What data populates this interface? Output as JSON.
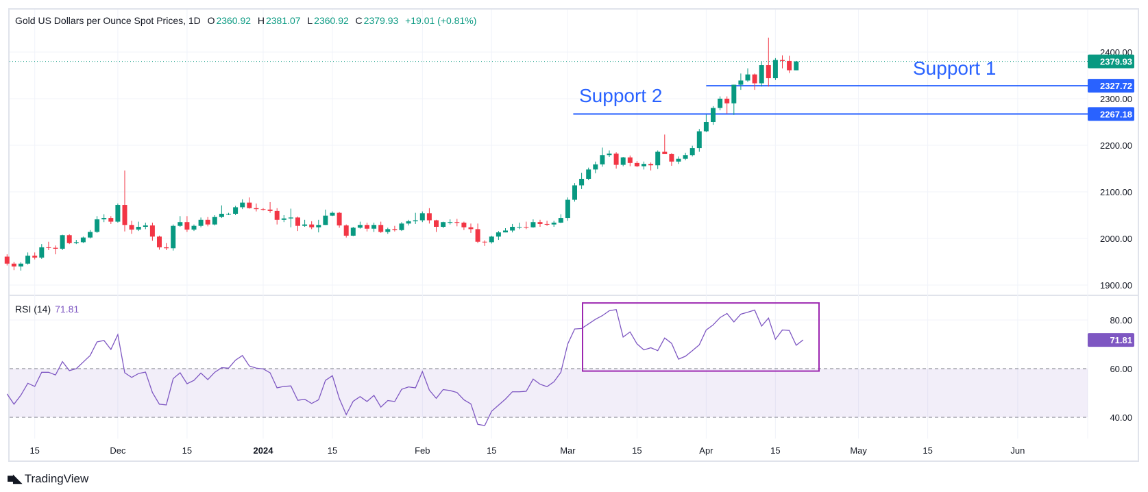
{
  "header": {
    "title": "Gold US Dollars per Ounce Spot Prices, 1D",
    "open_label": "O",
    "open": "2360.92",
    "high_label": "H",
    "high": "2381.07",
    "low_label": "L",
    "low": "2360.92",
    "close_label": "C",
    "close": "2379.93",
    "change": "+19.01 (+0.81%)"
  },
  "annotations": {
    "support1": "Support 1",
    "support2": "Support 2"
  },
  "rsi_legend": {
    "label": "RSI (14)",
    "value": "71.81"
  },
  "footer": {
    "brand": "TradingView",
    "logo_mark": "TV"
  },
  "colors": {
    "up": "#089981",
    "down": "#f23645",
    "rsi": "#7e57c2",
    "support": "#2962ff",
    "box": "#9c27b0"
  },
  "chart_data": [
    {
      "type": "candlestick",
      "title": "Gold US Dollars per Ounce Spot Prices, 1D",
      "ylim": [
        1870,
        2440
      ],
      "yticks": [
        "2400.00",
        "2300.00",
        "2200.00",
        "2100.00",
        "2000.00",
        "1900.00"
      ],
      "ytick_values": [
        2400,
        2300,
        2200,
        2100,
        2000,
        1900
      ],
      "last_price": {
        "value": 2379.93,
        "label": "2379.93"
      },
      "support_lines": [
        {
          "name": "Support 1",
          "value": 2327.72,
          "label": "2327.72",
          "from_date": "2024-04-01"
        },
        {
          "name": "Support 2",
          "value": 2267.18,
          "label": "2267.18",
          "from_date": "2024-03-01"
        }
      ],
      "xticks": [
        {
          "label": "15",
          "date": "2023-11-15"
        },
        {
          "label": "Dec",
          "date": "2023-12-01"
        },
        {
          "label": "15",
          "date": "2023-12-15"
        },
        {
          "label": "2024",
          "date": "2024-01-01",
          "bold": true
        },
        {
          "label": "15",
          "date": "2024-01-15"
        },
        {
          "label": "Feb",
          "date": "2024-02-01"
        },
        {
          "label": "15",
          "date": "2024-02-15"
        },
        {
          "label": "Mar",
          "date": "2024-03-01"
        },
        {
          "label": "15",
          "date": "2024-03-15"
        },
        {
          "label": "Apr",
          "date": "2024-04-01"
        },
        {
          "label": "15",
          "date": "2024-04-15"
        },
        {
          "label": "May",
          "date": "2024-05-01"
        },
        {
          "label": "15",
          "date": "2024-05-15"
        },
        {
          "label": "Jun",
          "date": "2024-06-03"
        }
      ],
      "xtick_bar_index": [
        4,
        16,
        26,
        37,
        47,
        60,
        70,
        81,
        91,
        101,
        111,
        123,
        133,
        146
      ],
      "ohlc": [
        [
          1961,
          1966,
          1942,
          1946
        ],
        [
          1946,
          1950,
          1932,
          1940
        ],
        [
          1940,
          1949,
          1931,
          1946
        ],
        [
          1946,
          1970,
          1944,
          1963
        ],
        [
          1963,
          1970,
          1955,
          1959
        ],
        [
          1959,
          1988,
          1956,
          1981
        ],
        [
          1981,
          1993,
          1975,
          1980
        ],
        [
          1980,
          1985,
          1966,
          1978
        ],
        [
          1978,
          2008,
          1975,
          2007
        ],
        [
          2007,
          2009,
          1988,
          1990
        ],
        [
          1990,
          1997,
          1988,
          1992
        ],
        [
          1992,
          2004,
          1990,
          2002
        ],
        [
          2002,
          2018,
          2000,
          2014
        ],
        [
          2014,
          2048,
          2012,
          2041
        ],
        [
          2041,
          2052,
          2035,
          2044
        ],
        [
          2044,
          2048,
          2031,
          2036
        ],
        [
          2036,
          2075,
          2034,
          2072
        ],
        [
          2072,
          2146,
          2015,
          2029
        ],
        [
          2029,
          2038,
          2010,
          2019
        ],
        [
          2019,
          2036,
          2016,
          2025
        ],
        [
          2025,
          2034,
          2020,
          2028
        ],
        [
          2028,
          2034,
          1995,
          2004
        ],
        [
          2004,
          2006,
          1976,
          1981
        ],
        [
          1981,
          1990,
          1975,
          1979
        ],
        [
          1979,
          2030,
          1974,
          2027
        ],
        [
          2027,
          2048,
          2025,
          2035
        ],
        [
          2035,
          2048,
          2014,
          2019
        ],
        [
          2019,
          2030,
          2016,
          2027
        ],
        [
          2027,
          2045,
          2024,
          2040
        ],
        [
          2040,
          2046,
          2026,
          2030
        ],
        [
          2030,
          2050,
          2028,
          2046
        ],
        [
          2046,
          2071,
          2044,
          2053
        ],
        [
          2053,
          2055,
          2050,
          2053
        ],
        [
          2053,
          2070,
          2050,
          2067
        ],
        [
          2067,
          2084,
          2063,
          2077
        ],
        [
          2077,
          2088,
          2064,
          2065
        ],
        [
          2065,
          2075,
          2058,
          2063
        ],
        [
          2063,
          2065,
          2060,
          2062
        ],
        [
          2062,
          2078,
          2055,
          2059
        ],
        [
          2059,
          2065,
          2030,
          2040
        ],
        [
          2040,
          2050,
          2035,
          2043
        ],
        [
          2043,
          2064,
          2024,
          2045
        ],
        [
          2045,
          2047,
          2016,
          2027
        ],
        [
          2027,
          2040,
          2025,
          2030
        ],
        [
          2030,
          2037,
          2020,
          2024
        ],
        [
          2024,
          2040,
          2013,
          2029
        ],
        [
          2029,
          2062,
          2029,
          2049
        ],
        [
          2049,
          2058,
          2048,
          2055
        ],
        [
          2055,
          2057,
          2023,
          2028
        ],
        [
          2028,
          2030,
          2002,
          2006
        ],
        [
          2006,
          2025,
          2005,
          2023
        ],
        [
          2023,
          2036,
          2021,
          2029
        ],
        [
          2029,
          2034,
          2015,
          2021
        ],
        [
          2021,
          2034,
          2014,
          2029
        ],
        [
          2029,
          2036,
          2012,
          2014
        ],
        [
          2014,
          2023,
          2010,
          2020
        ],
        [
          2020,
          2027,
          2015,
          2018
        ],
        [
          2018,
          2035,
          2016,
          2032
        ],
        [
          2032,
          2040,
          2028,
          2037
        ],
        [
          2037,
          2055,
          2031,
          2039
        ],
        [
          2039,
          2058,
          2035,
          2054
        ],
        [
          2054,
          2065,
          2032,
          2039
        ],
        [
          2039,
          2040,
          2014,
          2025
        ],
        [
          2025,
          2036,
          2022,
          2035
        ],
        [
          2035,
          2041,
          2030,
          2035
        ],
        [
          2035,
          2042,
          2026,
          2034
        ],
        [
          2034,
          2036,
          2018,
          2024
        ],
        [
          2024,
          2032,
          2012,
          2020
        ],
        [
          2020,
          2032,
          1990,
          1993
        ],
        [
          1993,
          1996,
          1984,
          1992
        ],
        [
          1992,
          2006,
          1989,
          2004
        ],
        [
          2004,
          2016,
          1997,
          2013
        ],
        [
          2013,
          2022,
          2013,
          2017
        ],
        [
          2017,
          2031,
          2013,
          2025
        ],
        [
          2025,
          2034,
          2020,
          2025
        ],
        [
          2025,
          2036,
          2020,
          2024
        ],
        [
          2024,
          2041,
          2023,
          2035
        ],
        [
          2035,
          2040,
          2025,
          2031
        ],
        [
          2031,
          2038,
          2027,
          2030
        ],
        [
          2030,
          2038,
          2025,
          2034
        ],
        [
          2034,
          2052,
          2033,
          2044
        ],
        [
          2044,
          2088,
          2038,
          2083
        ],
        [
          2083,
          2119,
          2079,
          2114
        ],
        [
          2114,
          2141,
          2106,
          2128
        ],
        [
          2128,
          2152,
          2125,
          2148
        ],
        [
          2148,
          2165,
          2140,
          2159
        ],
        [
          2159,
          2195,
          2154,
          2179
        ],
        [
          2179,
          2189,
          2175,
          2182
        ],
        [
          2182,
          2185,
          2150,
          2158
        ],
        [
          2158,
          2175,
          2155,
          2174
        ],
        [
          2174,
          2178,
          2155,
          2162
        ],
        [
          2162,
          2166,
          2153,
          2155
        ],
        [
          2155,
          2165,
          2148,
          2160
        ],
        [
          2160,
          2163,
          2146,
          2157
        ],
        [
          2157,
          2189,
          2149,
          2186
        ],
        [
          2186,
          2223,
          2183,
          2181
        ],
        [
          2181,
          2183,
          2156,
          2165
        ],
        [
          2165,
          2176,
          2160,
          2171
        ],
        [
          2171,
          2184,
          2168,
          2179
        ],
        [
          2179,
          2199,
          2176,
          2194
        ],
        [
          2194,
          2235,
          2186,
          2230
        ],
        [
          2230,
          2266,
          2228,
          2250
        ],
        [
          2250,
          2284,
          2244,
          2280
        ],
        [
          2280,
          2305,
          2275,
          2300
        ],
        [
          2300,
          2305,
          2268,
          2290
        ],
        [
          2290,
          2330,
          2265,
          2330
        ],
        [
          2330,
          2354,
          2319,
          2339
        ],
        [
          2339,
          2365,
          2336,
          2352
        ],
        [
          2352,
          2354,
          2319,
          2333
        ],
        [
          2333,
          2380,
          2326,
          2372
        ],
        [
          2372,
          2431,
          2326,
          2344
        ],
        [
          2344,
          2387,
          2340,
          2383
        ],
        [
          2383,
          2393,
          2365,
          2381
        ],
        [
          2381,
          2392,
          2355,
          2361
        ],
        [
          2360.92,
          2381.07,
          2360.92,
          2379.93
        ]
      ],
      "first_date": "2023-11-09",
      "last_date": "2024-04-18"
    },
    {
      "type": "line",
      "title": "RSI (14)",
      "ylim": [
        33,
        90
      ],
      "yticks": [
        "80.00",
        "60.00",
        "40.00"
      ],
      "ytick_values": [
        80,
        60,
        40
      ],
      "bands": {
        "upper": 60,
        "lower": 40
      },
      "last_value": {
        "value": 71.81,
        "label": "71.81"
      },
      "highlight_box": {
        "from_date": "2024-03-05",
        "to_date": "2024-04-23",
        "rsi_range": [
          59,
          87
        ]
      },
      "values": [
        49.6,
        45.4,
        49.1,
        54,
        52.7,
        58.5,
        58.5,
        57.4,
        62.9,
        59.2,
        60,
        62.7,
        65.4,
        71,
        71.6,
        67.9,
        74,
        58.3,
        56.4,
        58,
        58.6,
        50.2,
        45.4,
        45.1,
        55.9,
        58.3,
        53.8,
        55.2,
        58.2,
        55.5,
        58.5,
        60.4,
        60.2,
        63.5,
        65.4,
        61.1,
        60.2,
        59.9,
        58.3,
        52.1,
        52.7,
        52.9,
        47,
        47.4,
        45.7,
        47.2,
        55.2,
        57.1,
        47.7,
        41.1,
        46.6,
        48.5,
        46.5,
        49,
        44.2,
        46.9,
        46.5,
        51.5,
        52.5,
        52.1,
        58.8,
        51.2,
        47.8,
        51.4,
        51,
        50.2,
        47.2,
        45.5,
        37.1,
        36.6,
        42.5,
        45,
        47.5,
        50.5,
        50.5,
        50.7,
        55.7,
        53.6,
        52.6,
        54.6,
        58.5,
        70.2,
        76.3,
        76.5,
        78.4,
        80.3,
        81.8,
        83.8,
        84.3,
        73,
        75.1,
        70.2,
        67.7,
        68.6,
        67.4,
        72.6,
        70.4,
        63.9,
        65.1,
        67.4,
        69.8,
        75.9,
        78,
        81,
        82.7,
        79.2,
        82.4,
        83.2,
        84.1,
        77.5,
        80.8,
        72.1,
        75.9,
        75.7,
        69.6,
        71.81
      ]
    }
  ]
}
